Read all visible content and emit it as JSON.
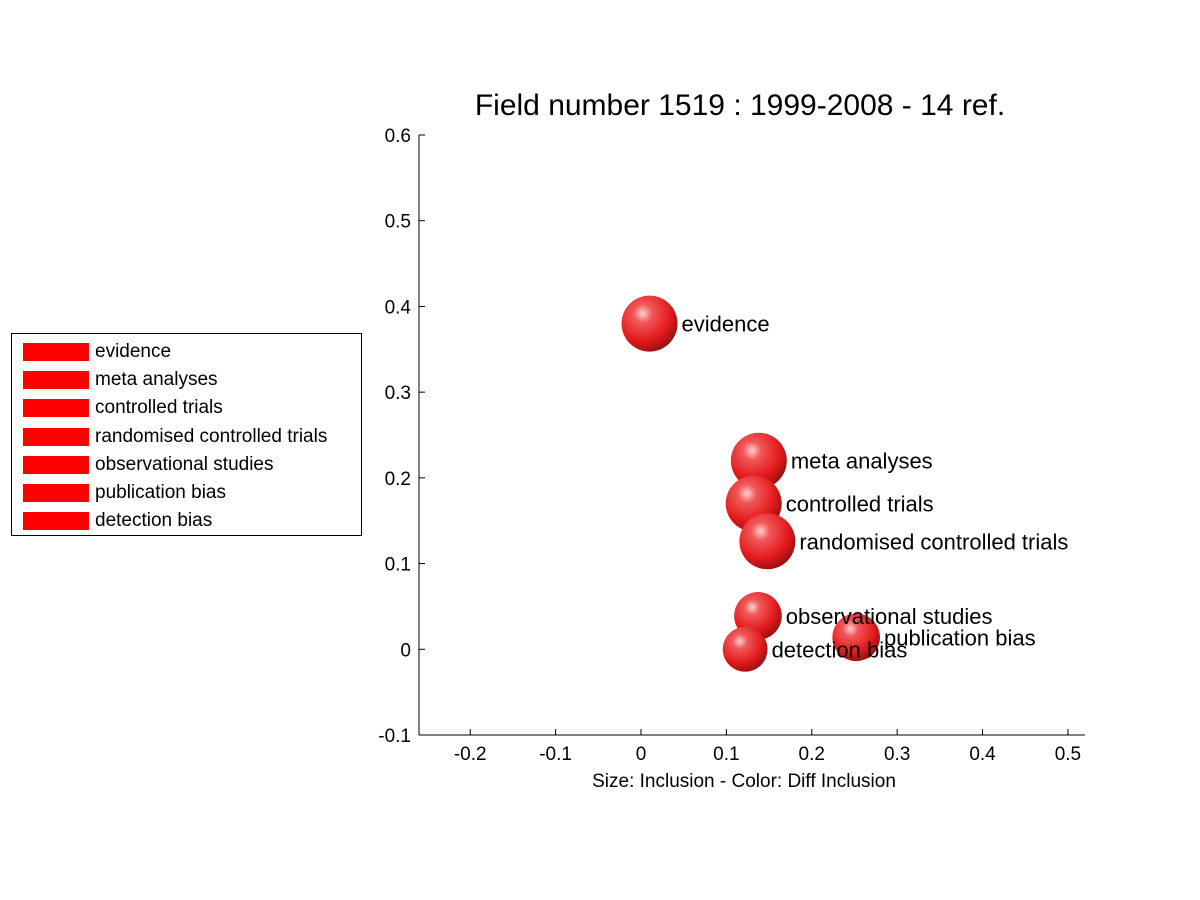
{
  "chart_data": {
    "type": "scatter",
    "title": "Field number 1519 : 1999-2008  - 14 ref.",
    "xlabel": "Size: Inclusion - Color: Diff Inclusion",
    "ylabel": "",
    "xlim": [
      -0.26,
      0.52
    ],
    "ylim": [
      -0.1,
      0.6
    ],
    "xticks": [
      "-0.2",
      "-0.1",
      "0",
      "0.1",
      "0.2",
      "0.3",
      "0.4",
      "0.5"
    ],
    "yticks": [
      "-0.1",
      "0",
      "0.1",
      "0.2",
      "0.3",
      "0.4",
      "0.5",
      "0.6"
    ],
    "grid": false,
    "legend_position": "left",
    "marker_color": "#e41a1c",
    "points": [
      {
        "label": "evidence",
        "x": 0.01,
        "y": 0.38,
        "size": 1.0
      },
      {
        "label": "meta analyses",
        "x": 0.138,
        "y": 0.22,
        "size": 1.0
      },
      {
        "label": "controlled trials",
        "x": 0.132,
        "y": 0.17,
        "size": 1.0
      },
      {
        "label": "randomised controlled trials",
        "x": 0.148,
        "y": 0.126,
        "size": 1.0
      },
      {
        "label": "observational studies",
        "x": 0.137,
        "y": 0.039,
        "size": 0.85
      },
      {
        "label": "publication bias",
        "x": 0.252,
        "y": 0.014,
        "size": 0.85
      },
      {
        "label": "detection bias",
        "x": 0.122,
        "y": 0.0,
        "size": 0.8
      }
    ]
  },
  "legend": {
    "swatch_color": "#ff0000",
    "items": [
      "evidence",
      "meta analyses",
      "controlled trials",
      "randomised controlled trials",
      "observational studies",
      "publication bias",
      "detection bias"
    ]
  }
}
